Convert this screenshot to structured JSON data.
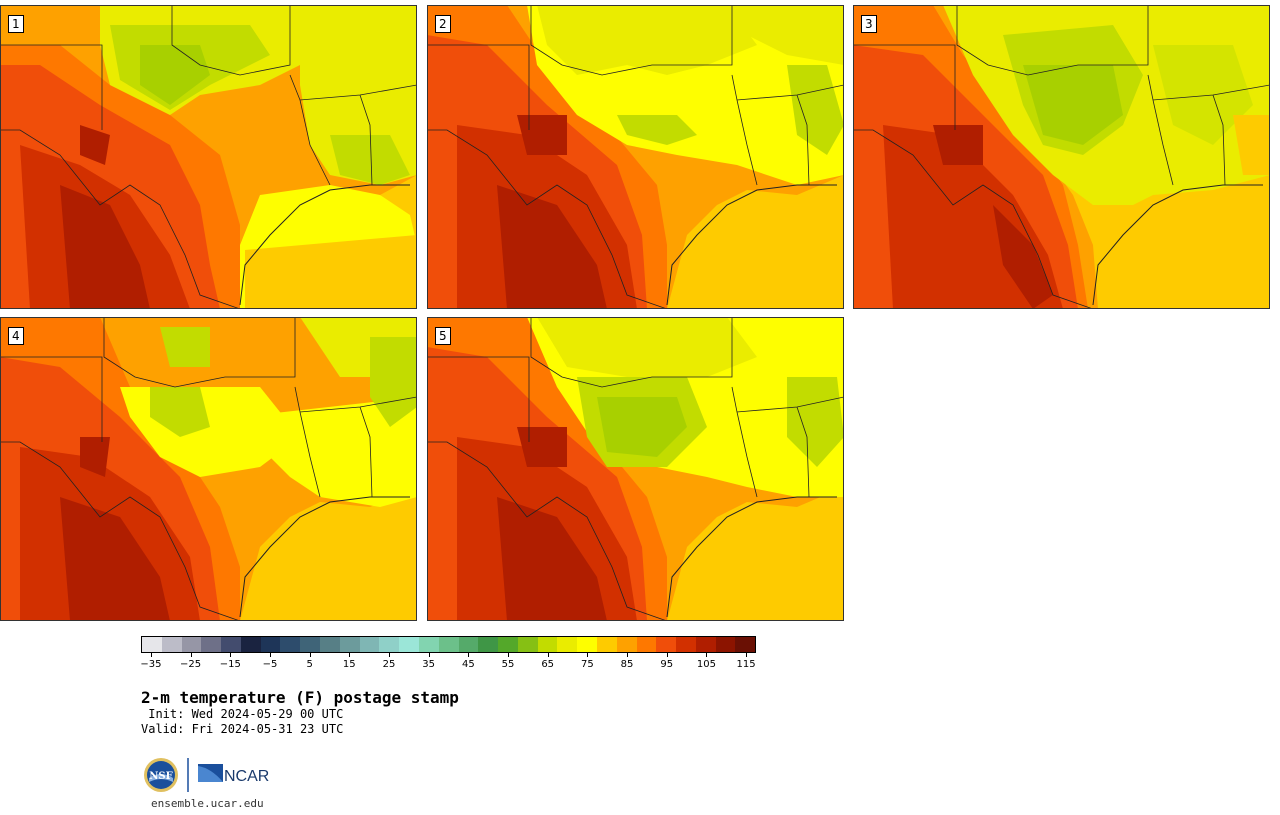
{
  "panels": [
    {
      "label": "1"
    },
    {
      "label": "2"
    },
    {
      "label": "3"
    },
    {
      "label": "4"
    },
    {
      "label": "5"
    }
  ],
  "colorbar": {
    "colors": [
      "#e6e6ea",
      "#bcbcc8",
      "#9696a6",
      "#6e7088",
      "#434c6e",
      "#1a2340",
      "#1e3558",
      "#2d4c6c",
      "#3f6478",
      "#577f86",
      "#6c9b9c",
      "#7fb6b4",
      "#8fd0c8",
      "#9be6d8",
      "#82d4b0",
      "#6cc08a",
      "#55aa6a",
      "#3f9646",
      "#54a82a",
      "#86c014",
      "#c2dc00",
      "#eaec00",
      "#fefe00",
      "#fecb00",
      "#fea100",
      "#fe7800",
      "#f04e0a",
      "#d23000",
      "#b01e00",
      "#8c1400",
      "#6a1004"
    ],
    "tick_labels": [
      "−35",
      "−25",
      "−15",
      "−5",
      "5",
      "15",
      "25",
      "35",
      "45",
      "55",
      "65",
      "75",
      "85",
      "95",
      "105",
      "115"
    ],
    "min": -35,
    "step": 5
  },
  "title": "2-m temperature (F) postage stamp",
  "init": " Init: Wed 2024-05-29 00 UTC",
  "valid": "Valid: Fri 2024-05-31 23 UTC",
  "logos": {
    "nsf": "NSF",
    "ncar": "NCAR"
  },
  "site": "ensemble.ucar.edu"
}
